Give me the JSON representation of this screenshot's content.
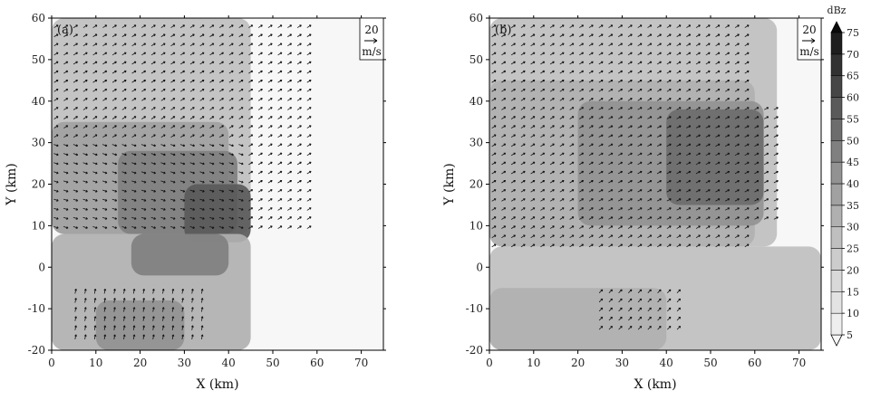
{
  "chart_data": [
    {
      "type": "heatmap",
      "panel_label": "(a)",
      "xlabel": "X (km)",
      "ylabel": "Y (km)",
      "xlim": [
        0,
        75
      ],
      "ylim": [
        -20,
        60
      ],
      "xticks": [
        0,
        10,
        20,
        30,
        40,
        50,
        60,
        70
      ],
      "yticks": [
        -20,
        -10,
        0,
        10,
        20,
        30,
        40,
        50,
        60
      ],
      "reference_vector": {
        "value": "20",
        "unit": "m/s"
      },
      "echo_regions": [
        {
          "x": [
            0,
            45
          ],
          "y": [
            8,
            60
          ],
          "dbz": 25
        },
        {
          "x": [
            0,
            40
          ],
          "y": [
            8,
            35
          ],
          "dbz": 35
        },
        {
          "x": [
            15,
            42
          ],
          "y": [
            8,
            28
          ],
          "dbz": 45
        },
        {
          "x": [
            30,
            45
          ],
          "y": [
            6,
            20
          ],
          "dbz": 55
        },
        {
          "x": [
            0,
            45
          ],
          "y": [
            -20,
            8
          ],
          "dbz": 30
        },
        {
          "x": [
            18,
            40
          ],
          "y": [
            -2,
            8
          ],
          "dbz": 45
        },
        {
          "x": [
            10,
            30
          ],
          "y": [
            -20,
            -8
          ],
          "dbz": 40
        }
      ],
      "wind_regions": [
        {
          "x": [
            0,
            60
          ],
          "y": [
            8,
            60
          ],
          "u": 0.8,
          "v": 0.5
        },
        {
          "x": [
            0,
            45
          ],
          "y": [
            8,
            30
          ],
          "u": 0.9,
          "v": -0.3
        },
        {
          "x": [
            5,
            35
          ],
          "y": [
            -18,
            -5
          ],
          "u": 0.2,
          "v": 1.0
        }
      ]
    },
    {
      "type": "heatmap",
      "panel_label": "(b)",
      "xlabel": "X (km)",
      "ylabel": "Y (km)",
      "xlim": [
        0,
        75
      ],
      "ylim": [
        -20,
        60
      ],
      "xticks": [
        0,
        10,
        20,
        30,
        40,
        50,
        60,
        70
      ],
      "yticks": [
        -20,
        -10,
        0,
        10,
        20,
        30,
        40,
        50,
        60
      ],
      "reference_vector": {
        "value": "20",
        "unit": "m/s"
      },
      "echo_regions": [
        {
          "x": [
            0,
            65
          ],
          "y": [
            5,
            60
          ],
          "dbz": 25
        },
        {
          "x": [
            0,
            60
          ],
          "y": [
            5,
            45
          ],
          "dbz": 30
        },
        {
          "x": [
            20,
            62
          ],
          "y": [
            10,
            40
          ],
          "dbz": 40
        },
        {
          "x": [
            40,
            62
          ],
          "y": [
            15,
            38
          ],
          "dbz": 50
        },
        {
          "x": [
            0,
            75
          ],
          "y": [
            -20,
            5
          ],
          "dbz": 25
        },
        {
          "x": [
            0,
            40
          ],
          "y": [
            -20,
            -5
          ],
          "dbz": 30
        }
      ],
      "wind_regions": [
        {
          "x": [
            0,
            60
          ],
          "y": [
            5,
            60
          ],
          "u": 0.8,
          "v": 0.5
        },
        {
          "x": [
            25,
            65
          ],
          "y": [
            10,
            40
          ],
          "u": 0.85,
          "v": 0.45
        },
        {
          "x": [
            25,
            45
          ],
          "y": [
            -15,
            -5
          ],
          "u": 0.7,
          "v": 0.7
        }
      ]
    }
  ],
  "colorbar": {
    "unit": "dBz",
    "levels": [
      5,
      10,
      15,
      20,
      25,
      30,
      35,
      40,
      45,
      50,
      55,
      60,
      65,
      70,
      75
    ],
    "colors": [
      "#f7f7f7",
      "#eeeeee",
      "#e3e3e3",
      "#d9d9d9",
      "#cccccc",
      "#bfbfbf",
      "#b0b0b0",
      "#a1a1a1",
      "#929292",
      "#808080",
      "#6d6d6d",
      "#5a5a5a",
      "#464646",
      "#323232",
      "#1e1e1e",
      "#0a0a0a"
    ]
  }
}
